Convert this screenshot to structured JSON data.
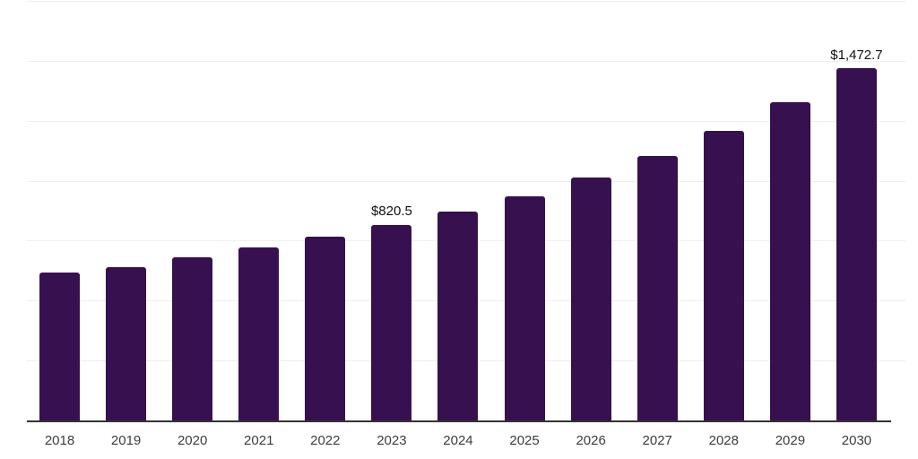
{
  "chart_data": {
    "type": "bar",
    "title": "",
    "xlabel": "",
    "ylabel": "",
    "categories": [
      "2018",
      "2019",
      "2020",
      "2021",
      "2022",
      "2023",
      "2024",
      "2025",
      "2026",
      "2027",
      "2028",
      "2029",
      "2030"
    ],
    "values": [
      619,
      645,
      686,
      727,
      772,
      820.5,
      876,
      940,
      1018,
      1108,
      1212,
      1331,
      1472.7
    ],
    "labeled_points": [
      {
        "category": "2023",
        "label": "$820.5"
      },
      {
        "category": "2030",
        "label": "$1,472.7"
      }
    ],
    "ylim": [
      0,
      1750
    ],
    "gridline_step": 250,
    "grid": "horizontal-only",
    "y_axis_tick_labels": "hidden",
    "legend_position": "none",
    "bar_color": "#37114F",
    "axis_line_color": "#333333",
    "gridline_color": "#efeff1",
    "tick_label_color": "#3d3d3d",
    "value_label_color": "#111111",
    "background_color": "#ffffff"
  }
}
